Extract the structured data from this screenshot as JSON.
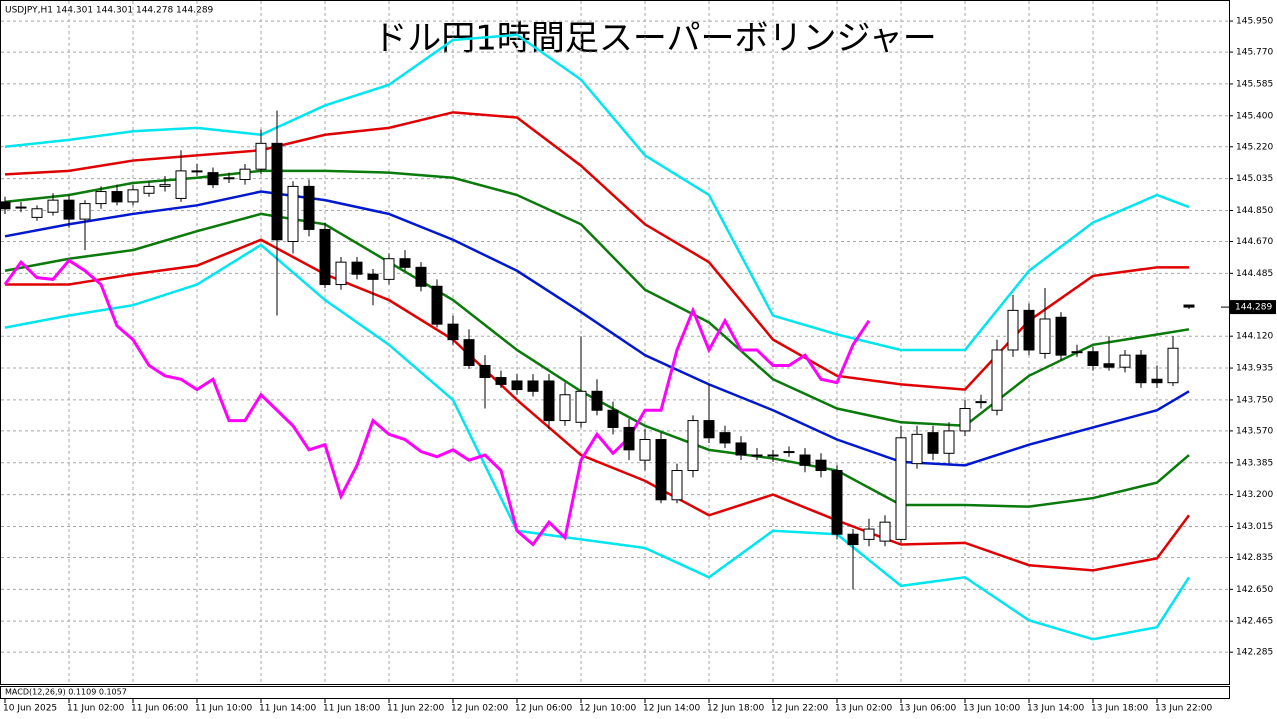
{
  "chart_data": {
    "type": "candlestick",
    "header": "USDJPY,H1  144.301 144.301 144.278 144.289",
    "title": "ドル円1時間足スーパーボリンジャー",
    "indicator_label": "MACD(12,26,9) 0.1109 0.1057",
    "last_price": 144.289,
    "ylim": [
      142.106,
      146.055
    ],
    "yticks": [
      {
        "value": 145.95,
        "label": "145.950"
      },
      {
        "value": 145.77,
        "label": "145.770"
      },
      145.585,
      {
        "value": 145.4,
        "label": "145.400"
      },
      {
        "value": 145.22,
        "label": "145.220"
      },
      {
        "value": 145.035,
        "label": "145.035"
      },
      {
        "value": 144.85,
        "label": "144.850"
      },
      {
        "value": 144.67,
        "label": "144.670"
      },
      144.485,
      {
        "value": 144.12,
        "label": "144.120"
      },
      143.935,
      {
        "value": 143.75,
        "label": "143.750"
      },
      {
        "value": 143.57,
        "label": "143.570"
      },
      143.385,
      {
        "value": 143.2,
        "label": "143.200"
      },
      143.015,
      142.835,
      {
        "value": 142.65,
        "label": "142.650"
      },
      142.465,
      142.285
    ],
    "xticks": [
      {
        "value": 0,
        "label": "10 Jun 2025"
      },
      {
        "value": 4,
        "label": "11 Jun 02:00"
      },
      {
        "value": 8,
        "label": "11 Jun 06:00"
      },
      {
        "value": 12,
        "label": "11 Jun 10:00"
      },
      {
        "value": 16,
        "label": "11 Jun 14:00"
      },
      {
        "value": 20,
        "label": "11 Jun 18:00"
      },
      {
        "value": 24,
        "label": "11 Jun 22:00"
      },
      {
        "value": 28,
        "label": "12 Jun 02:00"
      },
      {
        "value": 32,
        "label": "12 Jun 06:00"
      },
      {
        "value": 36,
        "label": "12 Jun 10:00"
      },
      {
        "value": 40,
        "label": "12 Jun 14:00"
      },
      {
        "value": 44,
        "label": "12 Jun 18:00"
      },
      {
        "value": 48,
        "label": "12 Jun 22:00"
      },
      {
        "value": 52,
        "label": "13 Jun 02:00"
      },
      {
        "value": 56,
        "label": "13 Jun 06:00"
      },
      {
        "value": 60,
        "label": "13 Jun 10:00"
      },
      {
        "value": 64,
        "label": "13 Jun 14:00"
      },
      {
        "value": 68,
        "label": "13 Jun 18:00"
      },
      {
        "value": 72,
        "label": "13 Jun 22:00"
      }
    ],
    "grid": true,
    "candles": [
      [
        144.9,
        144.93,
        144.83,
        144.86
      ],
      [
        144.87,
        144.9,
        144.84,
        144.87
      ],
      [
        144.81,
        144.88,
        144.79,
        144.86
      ],
      [
        144.84,
        144.95,
        144.82,
        144.91
      ],
      [
        144.91,
        144.94,
        144.75,
        144.8
      ],
      [
        144.8,
        144.91,
        144.62,
        144.89
      ],
      [
        144.89,
        144.99,
        144.86,
        144.96
      ],
      [
        144.96,
        145.0,
        144.88,
        144.9
      ],
      [
        144.9,
        145.0,
        144.88,
        144.97
      ],
      [
        144.95,
        145.02,
        144.93,
        144.99
      ],
      [
        144.99,
        145.05,
        144.96,
        145.0
      ],
      [
        144.92,
        145.2,
        144.9,
        145.08
      ],
      [
        145.08,
        145.12,
        145.05,
        145.08
      ],
      [
        145.07,
        145.1,
        144.98,
        145.0
      ],
      [
        145.04,
        145.07,
        145.01,
        145.04
      ],
      [
        145.03,
        145.12,
        145.0,
        145.09
      ],
      [
        145.09,
        145.32,
        145.06,
        145.24
      ],
      [
        145.24,
        145.43,
        144.24,
        144.68
      ],
      [
        144.67,
        145.02,
        144.6,
        144.99
      ],
      [
        144.99,
        145.03,
        144.7,
        144.74
      ],
      [
        144.74,
        144.78,
        144.4,
        144.42
      ],
      [
        144.42,
        144.58,
        144.39,
        144.55
      ],
      [
        144.55,
        144.58,
        144.45,
        144.48
      ],
      [
        144.48,
        144.51,
        144.3,
        144.45
      ],
      [
        144.45,
        144.6,
        144.42,
        144.57
      ],
      [
        144.57,
        144.62,
        144.5,
        144.52
      ],
      [
        144.52,
        144.55,
        144.38,
        144.41
      ],
      [
        144.41,
        144.45,
        144.17,
        144.19
      ],
      [
        144.19,
        144.24,
        144.07,
        144.1
      ],
      [
        144.1,
        144.16,
        143.93,
        143.95
      ],
      [
        143.95,
        144.01,
        143.7,
        143.88
      ],
      [
        143.88,
        143.92,
        143.82,
        143.84
      ],
      [
        143.86,
        143.9,
        143.78,
        143.81
      ],
      [
        143.86,
        143.9,
        143.77,
        143.8
      ],
      [
        143.86,
        143.9,
        143.58,
        143.63
      ],
      [
        143.63,
        143.85,
        143.6,
        143.78
      ],
      [
        143.62,
        144.12,
        143.59,
        143.8
      ],
      [
        143.8,
        143.87,
        143.66,
        143.69
      ],
      [
        143.69,
        143.74,
        143.55,
        143.59
      ],
      [
        143.59,
        143.64,
        143.4,
        143.46
      ],
      [
        143.4,
        143.58,
        143.34,
        143.52
      ],
      [
        143.52,
        143.56,
        143.15,
        143.17
      ],
      [
        143.17,
        143.38,
        143.15,
        143.34
      ],
      [
        143.34,
        143.66,
        143.3,
        143.63
      ],
      [
        143.63,
        143.84,
        143.5,
        143.53
      ],
      [
        143.56,
        143.6,
        143.47,
        143.5
      ],
      [
        143.5,
        143.54,
        143.4,
        143.43
      ],
      [
        143.43,
        143.47,
        143.4,
        143.43
      ],
      [
        143.43,
        143.46,
        143.39,
        143.43
      ],
      [
        143.45,
        143.48,
        143.42,
        143.45
      ],
      [
        143.43,
        143.47,
        143.33,
        143.37
      ],
      [
        143.4,
        143.44,
        143.3,
        143.34
      ],
      [
        143.34,
        143.37,
        142.94,
        142.97
      ],
      [
        142.97,
        143.0,
        142.65,
        142.91
      ],
      [
        142.94,
        143.06,
        142.9,
        143.0
      ],
      [
        142.93,
        143.08,
        142.9,
        143.04
      ],
      [
        142.94,
        143.6,
        142.92,
        143.53
      ],
      [
        143.38,
        143.6,
        143.35,
        143.55
      ],
      [
        143.56,
        143.6,
        143.4,
        143.44
      ],
      [
        143.44,
        143.62,
        143.38,
        143.57
      ],
      [
        143.57,
        143.75,
        143.54,
        143.7
      ],
      [
        143.74,
        143.78,
        143.7,
        143.74
      ],
      [
        143.69,
        144.1,
        143.66,
        144.04
      ],
      [
        144.04,
        144.36,
        144.0,
        144.27
      ],
      [
        144.27,
        144.31,
        144.01,
        144.04
      ],
      [
        144.02,
        144.4,
        143.99,
        144.22
      ],
      [
        144.23,
        144.26,
        143.98,
        144.01
      ],
      [
        144.03,
        144.07,
        144.0,
        144.03
      ],
      [
        144.03,
        144.06,
        143.92,
        143.95
      ],
      [
        143.96,
        144.12,
        143.92,
        143.94
      ],
      [
        143.94,
        144.04,
        143.91,
        144.01
      ],
      [
        144.01,
        144.04,
        143.82,
        143.85
      ],
      [
        143.87,
        143.95,
        143.82,
        143.85
      ],
      [
        143.85,
        144.12,
        143.83,
        144.05
      ],
      [
        144.301,
        144.301,
        144.278,
        144.289
      ]
    ],
    "series": [
      {
        "color": "#00e5ee",
        "x": [
          0,
          4,
          8,
          12,
          16,
          20,
          24,
          28,
          32,
          36,
          40,
          44,
          48,
          52,
          56,
          60,
          64,
          68,
          72,
          74
        ],
        "values": [
          145.22,
          145.26,
          145.31,
          145.33,
          145.29,
          145.46,
          145.58,
          145.84,
          145.87,
          145.61,
          145.17,
          144.94,
          144.24,
          144.13,
          144.04,
          144.04,
          144.5,
          144.78,
          144.94,
          144.87
        ]
      },
      {
        "color": "#e00000",
        "x": [
          0,
          4,
          8,
          12,
          16,
          20,
          24,
          28,
          32,
          36,
          40,
          44,
          48,
          52,
          56,
          60,
          64,
          68,
          72,
          74
        ],
        "values": [
          145.06,
          145.08,
          145.14,
          145.17,
          145.2,
          145.29,
          145.33,
          145.42,
          145.39,
          145.11,
          144.77,
          144.55,
          144.1,
          143.89,
          143.84,
          143.81,
          144.21,
          144.47,
          144.52,
          144.52
        ]
      },
      {
        "color": "#0a7a0a",
        "x": [
          0,
          4,
          8,
          12,
          16,
          20,
          24,
          28,
          32,
          36,
          40,
          44,
          48,
          52,
          56,
          60,
          64,
          68,
          72,
          74
        ],
        "values": [
          144.9,
          144.94,
          145.01,
          145.04,
          145.08,
          145.08,
          145.07,
          145.04,
          144.94,
          144.77,
          144.39,
          144.2,
          143.87,
          143.7,
          143.62,
          143.6,
          143.89,
          144.07,
          144.13,
          144.16
        ]
      },
      {
        "color": "#0018d0",
        "x": [
          0,
          4,
          8,
          12,
          16,
          20,
          24,
          28,
          32,
          36,
          40,
          44,
          48,
          52,
          56,
          60,
          64,
          68,
          72,
          74
        ],
        "values": [
          144.7,
          144.77,
          144.83,
          144.88,
          144.96,
          144.91,
          144.83,
          144.68,
          144.5,
          144.26,
          144.01,
          143.84,
          143.69,
          143.52,
          143.39,
          143.37,
          143.49,
          143.59,
          143.69,
          143.8
        ]
      },
      {
        "color": "#0a7a0a",
        "x": [
          0,
          4,
          8,
          12,
          16,
          20,
          24,
          28,
          32,
          36,
          40,
          44,
          48,
          52,
          56,
          60,
          64,
          68,
          72,
          74
        ],
        "values": [
          144.5,
          144.57,
          144.62,
          144.73,
          144.83,
          144.77,
          144.55,
          144.33,
          144.04,
          143.8,
          143.6,
          143.46,
          143.41,
          143.34,
          143.14,
          143.14,
          143.13,
          143.18,
          143.27,
          143.43
        ]
      },
      {
        "color": "#e00000",
        "x": [
          0,
          4,
          8,
          12,
          16,
          20,
          24,
          28,
          32,
          36,
          40,
          44,
          48,
          52,
          56,
          60,
          64,
          68,
          72,
          74
        ],
        "values": [
          144.42,
          144.42,
          144.48,
          144.53,
          144.68,
          144.48,
          144.33,
          144.1,
          143.75,
          143.43,
          143.28,
          143.08,
          143.2,
          143.05,
          142.91,
          142.92,
          142.79,
          142.76,
          142.83,
          143.08
        ]
      },
      {
        "color": "#00e5ee",
        "x": [
          0,
          4,
          8,
          12,
          16,
          20,
          24,
          28,
          32,
          36,
          40,
          44,
          48,
          52,
          56,
          60,
          64,
          68,
          72,
          74
        ],
        "values": [
          144.17,
          144.24,
          144.3,
          144.42,
          144.65,
          144.33,
          144.07,
          143.75,
          142.99,
          142.94,
          142.89,
          142.72,
          142.99,
          142.97,
          142.67,
          142.72,
          142.47,
          142.36,
          142.43,
          142.72
        ]
      },
      {
        "color": "#ff00ff",
        "x": [
          0,
          1,
          2,
          3,
          4,
          5,
          6,
          7,
          8,
          9,
          10,
          11,
          12,
          13,
          14,
          15,
          16,
          17,
          18,
          19,
          20,
          21,
          22,
          23,
          24,
          25,
          26,
          27,
          28,
          29,
          30,
          31,
          32,
          33,
          34,
          35,
          36,
          37,
          38,
          39,
          40,
          41,
          42,
          43,
          44,
          45,
          46,
          47,
          48,
          49,
          50,
          51,
          52,
          53,
          54
        ],
        "values": [
          144.42,
          144.55,
          144.46,
          144.45,
          144.56,
          144.5,
          144.42,
          144.18,
          144.1,
          143.95,
          143.89,
          143.87,
          143.81,
          143.87,
          143.63,
          143.63,
          143.78,
          143.69,
          143.6,
          143.46,
          143.49,
          143.19,
          143.37,
          143.63,
          143.55,
          143.52,
          143.45,
          143.42,
          143.46,
          143.4,
          143.43,
          143.34,
          142.99,
          142.91,
          143.04,
          142.95,
          143.4,
          143.55,
          143.44,
          143.53,
          143.69,
          143.69,
          144.04,
          144.27,
          144.04,
          144.21,
          144.04,
          144.04,
          143.95,
          143.95,
          144.01,
          143.87,
          143.85,
          144.07,
          144.21
        ]
      }
    ]
  }
}
